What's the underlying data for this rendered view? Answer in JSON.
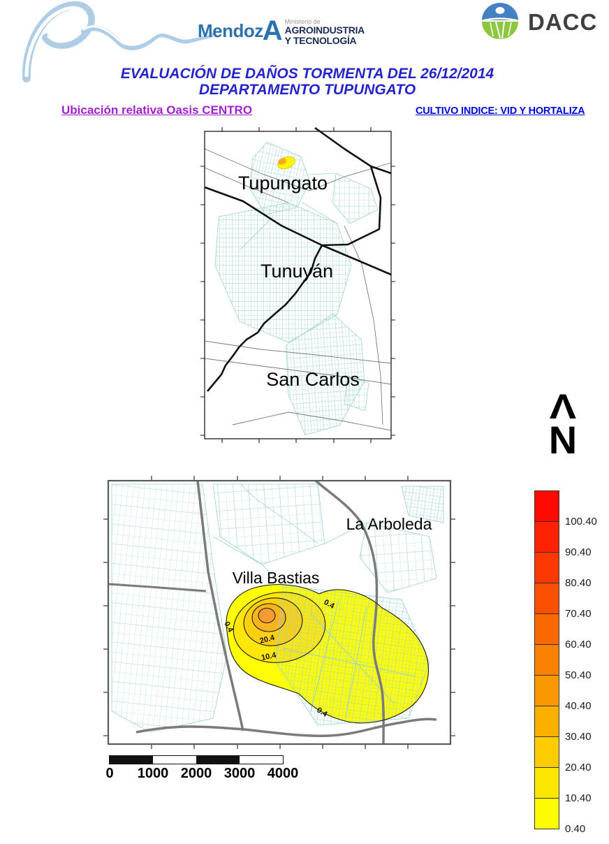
{
  "header": {
    "mendoza": {
      "word_main": "Mendoz",
      "word_a": "A",
      "small": "Ministerio de",
      "line1": "AGROINDUSTRIA",
      "line2": "Y TECNOLOGÍA"
    },
    "dacc": {
      "label": "DACC"
    },
    "title_line1": "EVALUACIÓN DE DAÑOS TORMENTA DEL 26/12/2014",
    "title_line2": "DEPARTAMENTO TUPUNGATO",
    "left_label": "Ubicación relativa Oasis CENTRO",
    "right_label": "CULTIVO INDICE: VID Y HORTALIZA"
  },
  "overview_map": {
    "label_north": "Tupungato",
    "label_middle": "Tunuyán",
    "label_south": "San Carlos",
    "spot_fill": "#FFF700",
    "spot_core": "#F9A825"
  },
  "north_indicator": {
    "arrow": "Λ",
    "letter": "N"
  },
  "detail_map": {
    "label_area1": "La Arboleda",
    "label_area2": "Villa Bastias",
    "contour_label_outer": "0.4",
    "contour_label_mid": "10.4",
    "contour_label_inner": "20.4",
    "band_colors": {
      "b0": "#FFFE05",
      "b10": "#FEE60A",
      "b20": "#FCD00E",
      "b30": "#FBB31F",
      "b40": "#F99B33"
    }
  },
  "scale_bar": {
    "labels": [
      "0",
      "1000",
      "2000",
      "3000",
      "4000"
    ],
    "segments": [
      "#111111",
      "#ffffff",
      "#111111",
      "#ffffff"
    ]
  },
  "legend": {
    "entries": [
      {
        "label": "100.40",
        "color": "#FE0A00"
      },
      {
        "label": "90.40",
        "color": "#FE2200"
      },
      {
        "label": "80.40",
        "color": "#FB3900"
      },
      {
        "label": "70.40",
        "color": "#FA5000"
      },
      {
        "label": "60.40",
        "color": "#FA6800"
      },
      {
        "label": "50.40",
        "color": "#FA8000"
      },
      {
        "label": "40.40",
        "color": "#FA9800"
      },
      {
        "label": "30.40",
        "color": "#FBB000"
      },
      {
        "label": "20.40",
        "color": "#FCCC00"
      },
      {
        "label": "10.40",
        "color": "#FDE600"
      },
      {
        "label": "0.40",
        "color": "#FFFB00"
      }
    ]
  },
  "chart_data": {
    "type": "heatmap",
    "title": "Hail/storm damage intensity contours, Tupungato 26/12/2014",
    "contour_levels": [
      0.4,
      10.4,
      20.4,
      30.4,
      40.4,
      50.4,
      60.4,
      70.4,
      80.4,
      90.4,
      100.4
    ],
    "legend_range": [
      0.4,
      100.4
    ],
    "visible_contour_labels": [
      0.4,
      10.4,
      20.4
    ],
    "scale_bar_meters": [
      0,
      1000,
      2000,
      3000,
      4000
    ],
    "places_overview": [
      "Tupungato",
      "Tunuyán",
      "San Carlos"
    ],
    "places_detail": [
      "La Arboleda",
      "Villa Bastias"
    ]
  }
}
